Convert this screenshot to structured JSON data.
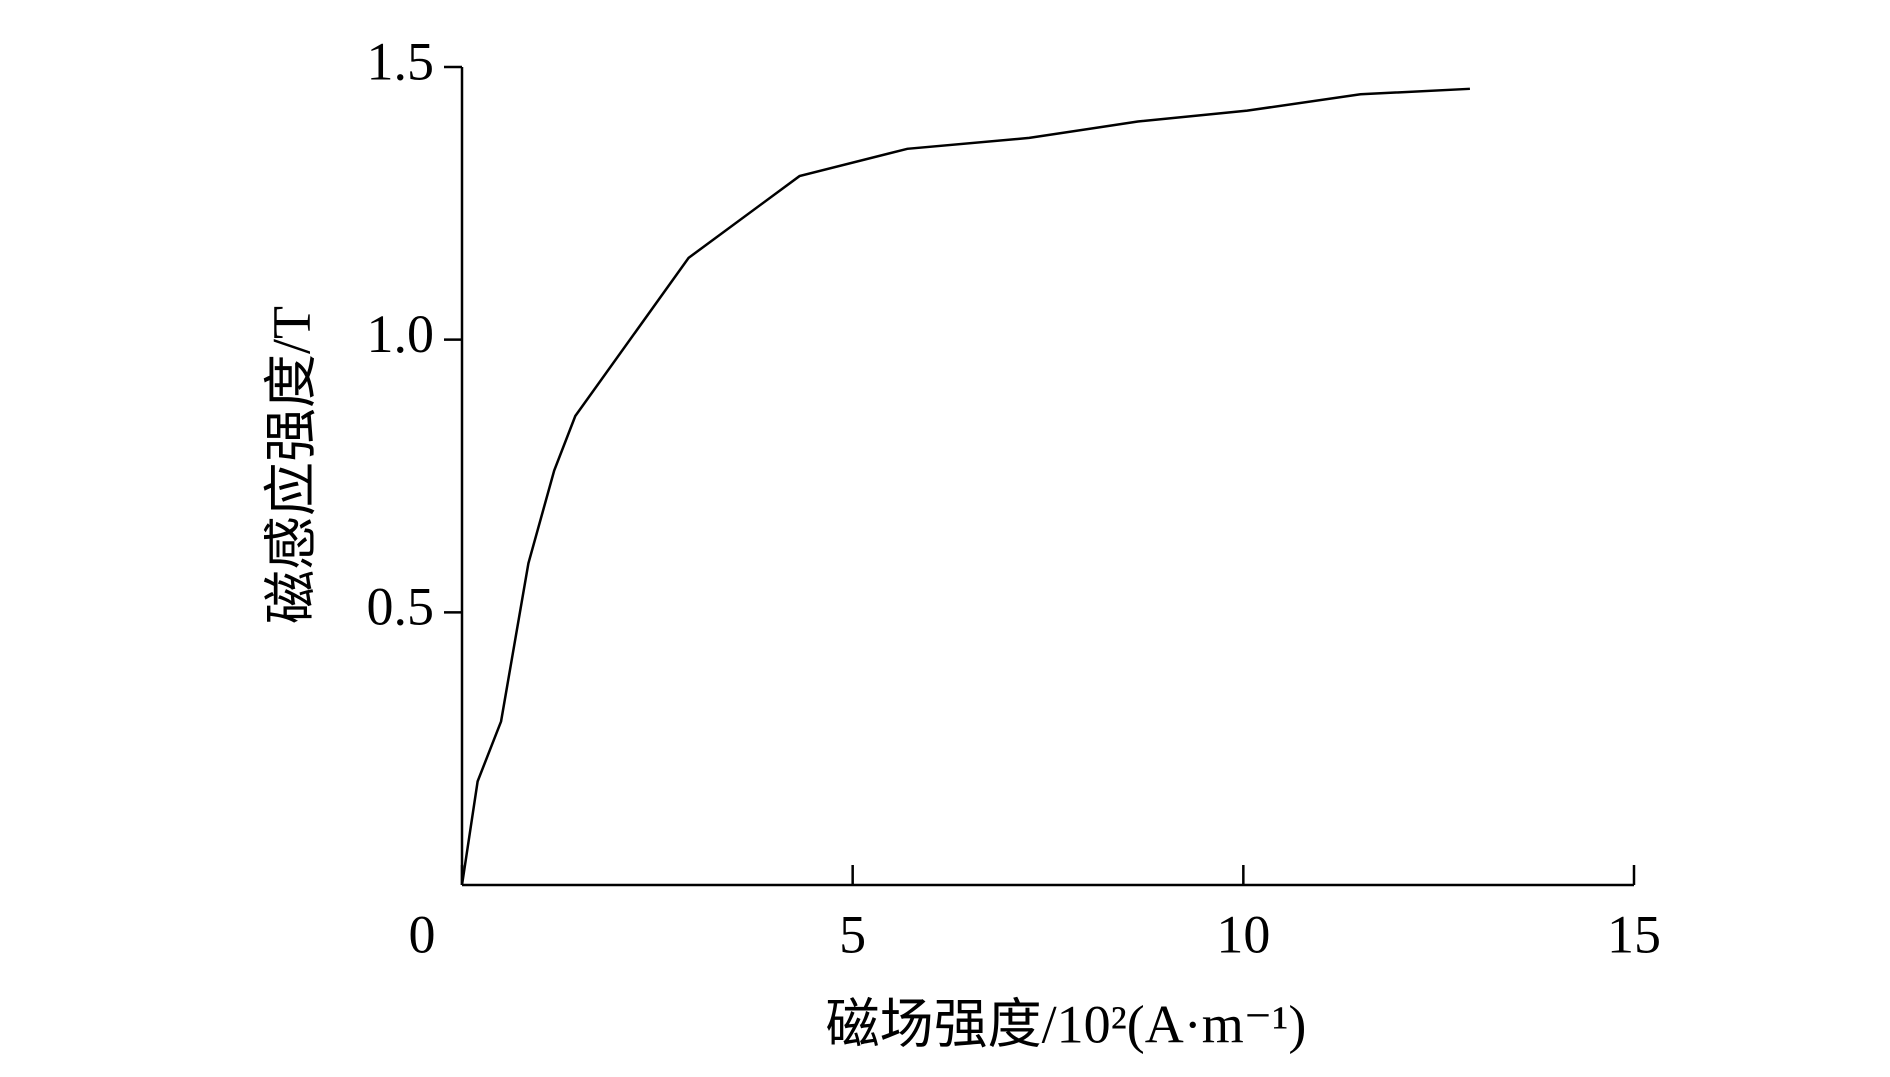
{
  "chart_data": {
    "type": "line",
    "x_label": "磁场强度/10²(A·m⁻¹)",
    "y_label": "磁感应强度/T",
    "x": [
      0,
      0.2,
      0.5,
      0.85,
      1.18,
      1.45,
      2.9,
      4.32,
      5.7,
      7.26,
      8.65,
      10.05,
      11.5,
      12.9
    ],
    "values": [
      0,
      0.19,
      0.3,
      0.59,
      0.76,
      0.86,
      1.15,
      1.3,
      1.35,
      1.37,
      1.4,
      1.42,
      1.45,
      1.46
    ],
    "color": "#000000",
    "xlim": [
      0,
      15
    ],
    "xticks": [
      0,
      5,
      10,
      15
    ],
    "ylim": [
      0,
      1.5
    ],
    "yticks": [
      {
        "value": 0.5,
        "label": "0.5"
      },
      {
        "value": 1.0,
        "label": "1.0"
      },
      {
        "value": 1.5,
        "label": "1.5"
      }
    ]
  }
}
